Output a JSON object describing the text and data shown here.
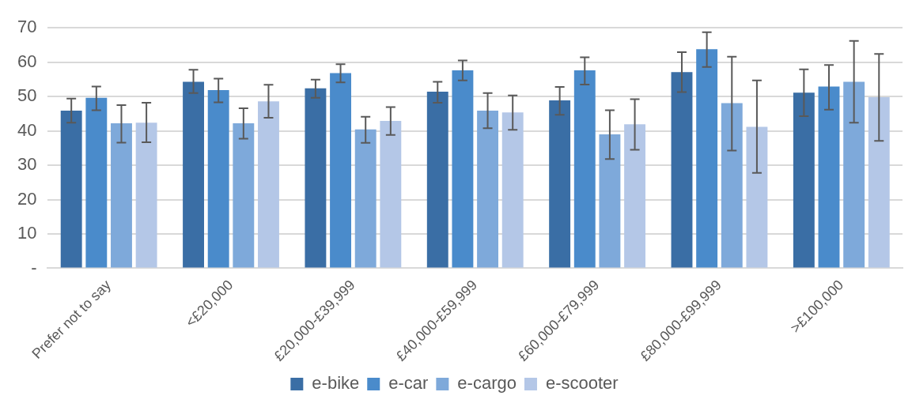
{
  "chart_data": {
    "type": "bar",
    "categories": [
      "Prefer not to say",
      "<£20,000",
      "£20,000-£39,999",
      "£40,000-£59,999",
      "£60,000-£79,999",
      "£80,000-£99,999",
      ">£100,000"
    ],
    "series": [
      {
        "name": "e-bike",
        "color": "#3a6ea5",
        "values": [
          45.9,
          54.3,
          52.4,
          51.4,
          48.9,
          57.1,
          51.1
        ],
        "errors": [
          [
            42.4,
            49.4
          ],
          [
            51.0,
            57.8
          ],
          [
            49.6,
            54.9
          ],
          [
            48.2,
            54.3
          ],
          [
            44.7,
            52.8
          ],
          [
            51.3,
            62.9
          ],
          [
            44.3,
            57.9
          ]
        ]
      },
      {
        "name": "e-car",
        "color": "#4a8bcb",
        "values": [
          49.6,
          51.9,
          56.8,
          57.6,
          57.6,
          63.8,
          52.9
        ],
        "errors": [
          [
            46.0,
            52.9
          ],
          [
            48.3,
            55.2
          ],
          [
            54.1,
            59.4
          ],
          [
            54.7,
            60.5
          ],
          [
            53.5,
            61.4
          ],
          [
            58.6,
            68.7
          ],
          [
            46.2,
            59.2
          ]
        ]
      },
      {
        "name": "e-cargo",
        "color": "#7ea9da",
        "values": [
          42.2,
          42.2,
          40.4,
          45.9,
          39.0,
          48.1,
          54.3
        ],
        "errors": [
          [
            36.6,
            47.5
          ],
          [
            37.7,
            46.6
          ],
          [
            36.5,
            44.1
          ],
          [
            40.8,
            51.0
          ],
          [
            31.8,
            46.0
          ],
          [
            34.3,
            61.6
          ],
          [
            42.4,
            66.2
          ]
        ]
      },
      {
        "name": "e-scooter",
        "color": "#b4c7e7",
        "values": [
          42.4,
          48.6,
          42.9,
          45.4,
          41.9,
          41.2,
          49.8
        ],
        "errors": [
          [
            36.7,
            48.2
          ],
          [
            43.8,
            53.4
          ],
          [
            38.8,
            46.9
          ],
          [
            40.3,
            50.3
          ],
          [
            34.5,
            49.2
          ],
          [
            27.8,
            54.7
          ],
          [
            37.1,
            62.4
          ]
        ]
      }
    ],
    "ylim": [
      0,
      70
    ],
    "yticks": [
      {
        "value": 0,
        "label": "-"
      },
      10,
      20,
      30,
      40,
      50,
      60,
      70
    ],
    "grid": "y",
    "legend": "bottom"
  }
}
